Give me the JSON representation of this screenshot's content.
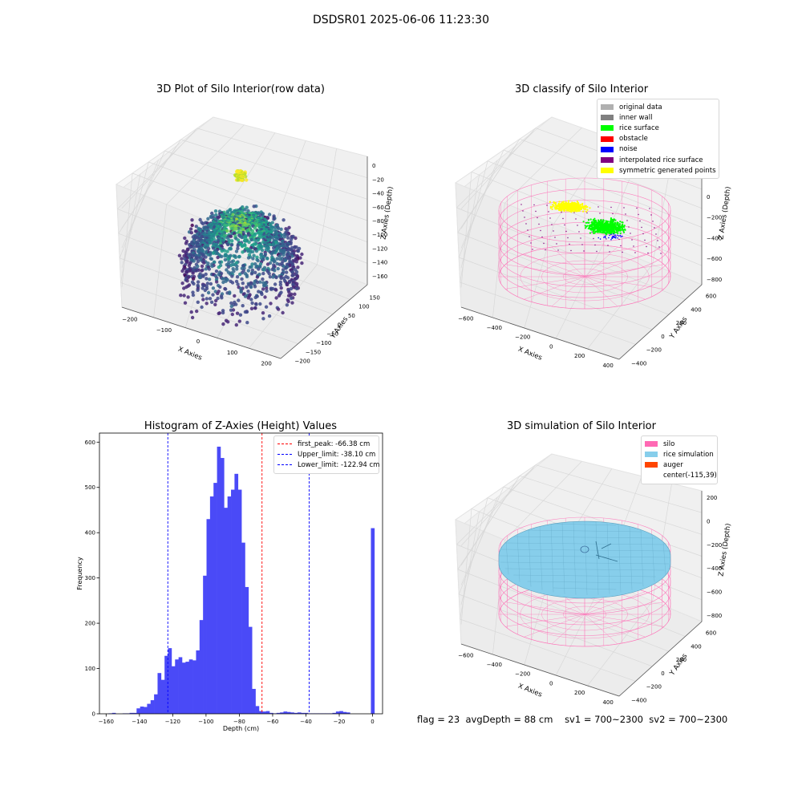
{
  "suptitle": "DSDSR01 2025-06-06 11:23:30",
  "stats": {
    "flag": "flag = 23",
    "avg": "avgDepth = 88 cm",
    "sv1": "sv1 = 700~2300",
    "sv2": "sv2 = 700~2300"
  },
  "colors": {
    "pane": "#f0f0f0",
    "grid": "#d8d8d8",
    "hist": "#4a4af7",
    "silo": "#ff69b4",
    "rice_sim": "#87ceeb",
    "auger": "#ff4500"
  },
  "chart_data": [
    {
      "type": "scatter",
      "title": "3D Plot of Silo Interior(row data)",
      "xlabel": "X Axies",
      "ylabel": "Y Axies",
      "zlabel": "Z Axies (Depth)",
      "x_ticks": [
        "−200",
        "−100",
        "0",
        "100",
        "200"
      ],
      "y_ticks": [
        "150",
        "100",
        "50",
        "0",
        "−50",
        "−100",
        "−150",
        "−200"
      ],
      "z_ticks": [
        "0",
        "−20",
        "−40",
        "−60",
        "−80",
        "−100",
        "−120",
        "−140",
        "−160"
      ],
      "xlim": [
        -240,
        260
      ],
      "ylim": [
        -210,
        170
      ],
      "zlim": [
        -170,
        5
      ],
      "colormap": "viridis"
    },
    {
      "type": "scatter",
      "title": "3D classify of Silo Interior",
      "xlabel": "X Axies",
      "ylabel": "Y Axies",
      "zlabel": "Z Axies (Depth)",
      "x_ticks": [
        "−600",
        "−400",
        "−200",
        "0",
        "200",
        "400"
      ],
      "y_ticks": [
        "600",
        "400",
        "200",
        "0",
        "−200",
        "−400"
      ],
      "z_ticks": [
        "200",
        "0",
        "−200",
        "−400",
        "−600",
        "−800"
      ],
      "legend": [
        {
          "label": "original data",
          "color": "#b0b0b0"
        },
        {
          "label": "inner wall",
          "color": "#808080"
        },
        {
          "label": "rice surface",
          "color": "#00ff00"
        },
        {
          "label": "obstacle",
          "color": "#ff0000"
        },
        {
          "label": "noise",
          "color": "#0000ff"
        },
        {
          "label": "interpolated rice surface",
          "color": "#800080"
        },
        {
          "label": "symmetric generated points",
          "color": "#ffff00"
        }
      ]
    },
    {
      "type": "bar",
      "title": "Histogram of Z-Axies (Height) Values",
      "xlabel": "Depth (cm)",
      "ylabel": "Frequency",
      "xlim": [
        -164,
        6
      ],
      "ylim": [
        0,
        620
      ],
      "x_ticks": [
        -160,
        -140,
        -120,
        -100,
        -80,
        -60,
        -40,
        -20,
        0
      ],
      "y_ticks": [
        0,
        100,
        200,
        300,
        400,
        500,
        600
      ],
      "bin_width": 2.1,
      "bin_starts": [
        -158.5,
        -156.4,
        -154.3,
        -152.2,
        -150.1,
        -148.0,
        -145.9,
        -143.8,
        -141.7,
        -139.6,
        -137.5,
        -135.4,
        -133.3,
        -131.2,
        -129.1,
        -127.0,
        -124.9,
        -122.8,
        -120.7,
        -118.6,
        -116.5,
        -114.4,
        -112.3,
        -110.2,
        -108.1,
        -106.0,
        -103.9,
        -101.8,
        -99.7,
        -97.6,
        -95.5,
        -93.4,
        -91.3,
        -89.2,
        -87.1,
        -85.0,
        -82.9,
        -80.8,
        -78.7,
        -76.6,
        -74.5,
        -72.4,
        -70.3,
        -68.2,
        -66.1,
        -64.0,
        -61.9,
        -59.8,
        -57.7,
        -55.6,
        -53.5,
        -51.4,
        -49.3,
        -47.2,
        -45.1,
        -43.0,
        -40.9,
        -38.8,
        -36.7,
        -34.6,
        -32.5,
        -30.4,
        -28.3,
        -26.2,
        -24.1,
        -22.0,
        -19.9,
        -17.8,
        -15.7,
        -13.6,
        -11.5,
        -9.4,
        -7.3,
        -5.2,
        -3.1,
        -1.0
      ],
      "values": [
        1,
        2,
        0,
        0,
        1,
        1,
        2,
        2,
        12,
        16,
        15,
        22,
        30,
        43,
        90,
        75,
        128,
        145,
        105,
        120,
        125,
        113,
        115,
        120,
        118,
        140,
        207,
        305,
        430,
        480,
        510,
        590,
        565,
        455,
        480,
        495,
        530,
        495,
        378,
        280,
        192,
        55,
        17,
        6,
        5,
        6,
        2,
        1,
        2,
        3,
        5,
        4,
        3,
        2,
        3,
        2,
        2,
        1,
        1,
        1,
        1,
        1,
        1,
        1,
        2,
        5,
        6,
        4,
        3,
        0,
        0,
        0,
        0,
        0,
        0,
        410
      ],
      "vlines": [
        {
          "label": "first_peak: -66.38 cm",
          "x": -66.38,
          "color": "#ff0000"
        },
        {
          "label": "Upper_limit: -38.10 cm",
          "x": -38.1,
          "color": "#0000ff"
        },
        {
          "label": "Lower_limit: -122.94 cm",
          "x": -122.94,
          "color": "#0000ff"
        }
      ]
    },
    {
      "type": "area",
      "title": "3D simulation of Silo Interior",
      "xlabel": "X Axies",
      "ylabel": "Y Axies",
      "zlabel": "Z Axies (Depth)",
      "x_ticks": [
        "−600",
        "−400",
        "−200",
        "0",
        "200",
        "400"
      ],
      "y_ticks": [
        "600",
        "400",
        "200",
        "0",
        "−200",
        "−400"
      ],
      "z_ticks": [
        "200",
        "0",
        "−200",
        "−400",
        "−600",
        "−800"
      ],
      "legend": [
        {
          "label": "silo",
          "color": "#ff69b4"
        },
        {
          "label": "rice simulation",
          "color": "#87ceeb"
        },
        {
          "label": "auger",
          "color": "#ff4500"
        },
        {
          "label": "center(-115,39)",
          "color": ""
        }
      ]
    }
  ]
}
